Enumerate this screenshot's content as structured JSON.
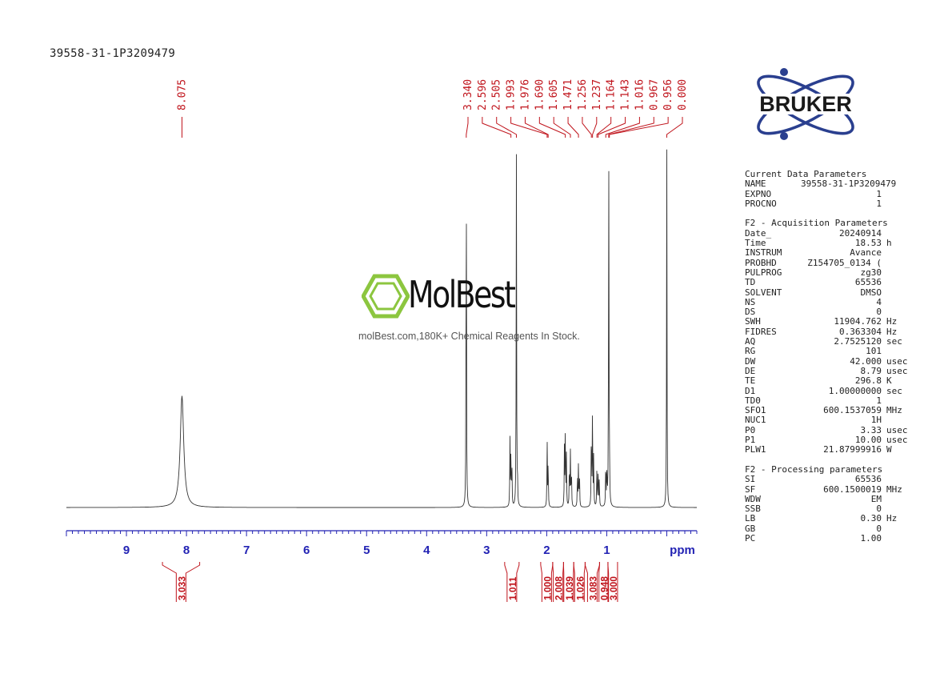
{
  "sample_id": "39558-31-1P3209479",
  "logo": {
    "text": "BRUKER",
    "color": "#2a3f8f"
  },
  "watermark": {
    "brand": "MolBest",
    "tagline": "molBest.com,180K+ Chemical Reagents In Stock.",
    "brand_color": "#8cc63f"
  },
  "colors": {
    "annotation": "#c0141c",
    "axis": "#2323b4",
    "spectrum": "#333333"
  },
  "params": {
    "current": {
      "title": "Current Data Parameters",
      "rows": [
        {
          "name": "NAME",
          "value": "39558-31-1P3209479",
          "unit": ""
        },
        {
          "name": "EXPNO",
          "value": "1",
          "unit": ""
        },
        {
          "name": "PROCNO",
          "value": "1",
          "unit": ""
        }
      ]
    },
    "acquisition": {
      "title": "F2 - Acquisition Parameters",
      "rows": [
        {
          "name": "Date_",
          "value": "20240914",
          "unit": ""
        },
        {
          "name": "Time",
          "value": "18.53",
          "unit": "h"
        },
        {
          "name": "INSTRUM",
          "value": "Avance",
          "unit": ""
        },
        {
          "name": "PROBHD",
          "value": "Z154705_0134 (",
          "unit": ""
        },
        {
          "name": "PULPROG",
          "value": "zg30",
          "unit": ""
        },
        {
          "name": "TD",
          "value": "65536",
          "unit": ""
        },
        {
          "name": "SOLVENT",
          "value": "DMSO",
          "unit": ""
        },
        {
          "name": "NS",
          "value": "4",
          "unit": ""
        },
        {
          "name": "DS",
          "value": "0",
          "unit": ""
        },
        {
          "name": "SWH",
          "value": "11904.762",
          "unit": "Hz"
        },
        {
          "name": "FIDRES",
          "value": "0.363304",
          "unit": "Hz"
        },
        {
          "name": "AQ",
          "value": "2.7525120",
          "unit": "sec"
        },
        {
          "name": "RG",
          "value": "101",
          "unit": ""
        },
        {
          "name": "DW",
          "value": "42.000",
          "unit": "usec"
        },
        {
          "name": "DE",
          "value": "8.79",
          "unit": "usec"
        },
        {
          "name": "TE",
          "value": "296.8",
          "unit": "K"
        },
        {
          "name": "D1",
          "value": "1.00000000",
          "unit": "sec"
        },
        {
          "name": "TD0",
          "value": "1",
          "unit": ""
        },
        {
          "name": "SFO1",
          "value": "600.1537059",
          "unit": "MHz"
        },
        {
          "name": "NUC1",
          "value": "1H",
          "unit": ""
        },
        {
          "name": "P0",
          "value": "3.33",
          "unit": "usec"
        },
        {
          "name": "P1",
          "value": "10.00",
          "unit": "usec"
        },
        {
          "name": "PLW1",
          "value": "21.87999916",
          "unit": "W"
        }
      ]
    },
    "processing": {
      "title": "F2 - Processing parameters",
      "rows": [
        {
          "name": "SI",
          "value": "65536",
          "unit": ""
        },
        {
          "name": "SF",
          "value": "600.1500019",
          "unit": "MHz"
        },
        {
          "name": "WDW",
          "value": "EM",
          "unit": ""
        },
        {
          "name": "SSB",
          "value": "0",
          "unit": ""
        },
        {
          "name": "LB",
          "value": "0.30",
          "unit": "Hz"
        },
        {
          "name": "GB",
          "value": "0",
          "unit": ""
        },
        {
          "name": "PC",
          "value": "1.00",
          "unit": ""
        }
      ]
    }
  },
  "chart_data": {
    "type": "line",
    "xlabel": "ppm",
    "xlim": [
      10.0,
      -0.5
    ],
    "x_reversed": true,
    "xticks": [
      9,
      8,
      7,
      6,
      5,
      4,
      3,
      2,
      1
    ],
    "peak_labels": [
      "8.075",
      "3.340",
      "2.596",
      "2.505",
      "1.993",
      "1.976",
      "1.690",
      "1.605",
      "1.471",
      "1.256",
      "1.237",
      "1.164",
      "1.143",
      "1.016",
      "0.967",
      "0.956",
      "0.000"
    ],
    "peaks": [
      {
        "ppm": 8.075,
        "height": 0.31
      },
      {
        "ppm": 3.34,
        "height": 1.08
      },
      {
        "ppm": 2.612,
        "height": 0.19
      },
      {
        "ppm": 2.596,
        "height": 0.16
      },
      {
        "ppm": 2.58,
        "height": 0.12
      },
      {
        "ppm": 2.505,
        "height": 0.98
      },
      {
        "ppm": 2.487,
        "height": 0.07
      },
      {
        "ppm": 1.993,
        "height": 0.19
      },
      {
        "ppm": 1.976,
        "height": 0.14
      },
      {
        "ppm": 1.705,
        "height": 0.16
      },
      {
        "ppm": 1.69,
        "height": 0.23
      },
      {
        "ppm": 1.672,
        "height": 0.14
      },
      {
        "ppm": 1.622,
        "height": 0.13
      },
      {
        "ppm": 1.605,
        "height": 0.15
      },
      {
        "ppm": 1.588,
        "height": 0.11
      },
      {
        "ppm": 1.488,
        "height": 0.1
      },
      {
        "ppm": 1.471,
        "height": 0.12
      },
      {
        "ppm": 1.454,
        "height": 0.09
      },
      {
        "ppm": 1.256,
        "height": 0.24
      },
      {
        "ppm": 1.237,
        "height": 0.29
      },
      {
        "ppm": 1.218,
        "height": 0.14
      },
      {
        "ppm": 1.164,
        "height": 0.11
      },
      {
        "ppm": 1.143,
        "height": 0.12
      },
      {
        "ppm": 1.124,
        "height": 0.08
      },
      {
        "ppm": 1.016,
        "height": 0.14
      },
      {
        "ppm": 0.997,
        "height": 0.1
      },
      {
        "ppm": 0.967,
        "height": 1.0
      },
      {
        "ppm": 0.956,
        "height": 0.15
      },
      {
        "ppm": 0.0,
        "height": 1.0
      }
    ],
    "integrals": [
      {
        "from": 8.4,
        "to": 7.78,
        "value": "3.033"
      },
      {
        "from": 2.7,
        "to": 2.46,
        "value": "1.011"
      },
      {
        "from": 2.1,
        "to": 1.9,
        "value": "1.000"
      },
      {
        "from": 1.9,
        "to": 1.72,
        "value": "2.008"
      },
      {
        "from": 1.72,
        "to": 1.55,
        "value": "1.039"
      },
      {
        "from": 1.55,
        "to": 1.36,
        "value": "1.026"
      },
      {
        "from": 1.36,
        "to": 1.12,
        "value": "3.083"
      },
      {
        "from": 1.12,
        "to": 0.98,
        "value": "0.948"
      },
      {
        "from": 0.98,
        "to": 0.82,
        "value": "3.000"
      }
    ]
  }
}
